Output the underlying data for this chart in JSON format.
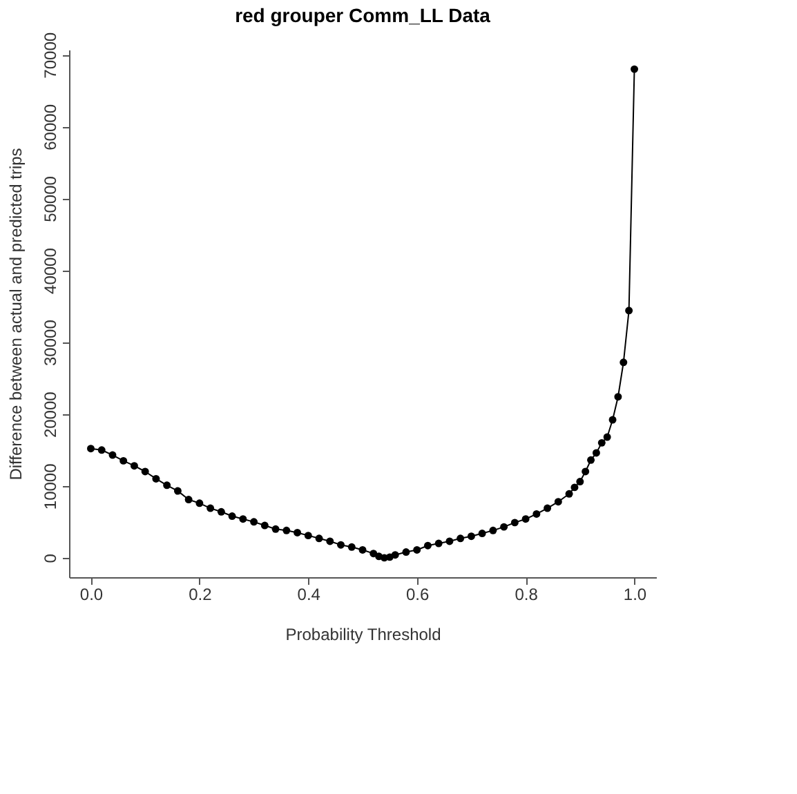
{
  "chart_data": {
    "type": "line",
    "title": "red grouper Comm_LL Data",
    "xlabel": "Probability Threshold",
    "ylabel": "Difference between actual and predicted trips",
    "x": [
      0,
      0.02,
      0.04,
      0.06,
      0.08,
      0.1,
      0.12,
      0.14,
      0.16,
      0.18,
      0.2,
      0.22,
      0.24,
      0.26,
      0.28,
      0.3,
      0.32,
      0.34,
      0.36,
      0.38,
      0.4,
      0.42,
      0.44,
      0.46,
      0.48,
      0.5,
      0.52,
      0.53,
      0.54,
      0.55,
      0.56,
      0.58,
      0.6,
      0.62,
      0.64,
      0.66,
      0.68,
      0.7,
      0.72,
      0.74,
      0.76,
      0.78,
      0.8,
      0.82,
      0.84,
      0.86,
      0.88,
      0.89,
      0.9,
      0.91,
      0.92,
      0.93,
      0.94,
      0.95,
      0.96,
      0.97,
      0.98,
      0.99,
      1.0
    ],
    "series": [
      {
        "color": "#000000",
        "values": [
          15200,
          15000,
          14300,
          13500,
          12800,
          12000,
          11000,
          10100,
          9300,
          8100,
          7600,
          6900,
          6400,
          5800,
          5400,
          5000,
          4500,
          4000,
          3800,
          3500,
          3100,
          2700,
          2300,
          1800,
          1500,
          1100,
          600,
          200,
          0,
          100,
          400,
          800,
          1100,
          1700,
          2000,
          2300,
          2700,
          3000,
          3400,
          3800,
          4300,
          4900,
          5400,
          6100,
          6900,
          7800,
          8900,
          9800,
          10600,
          12000,
          13600,
          14600,
          16000,
          16800,
          19200,
          22400,
          27200,
          34400,
          68000
        ]
      }
    ],
    "xlim": [
      -0.04,
      1.04
    ],
    "ylim": [
      -2700,
      70700
    ],
    "xticks": [
      {
        "value": 0,
        "label": "0.0"
      },
      0.2,
      0.4,
      0.6,
      0.8,
      {
        "value": 1,
        "label": "1.0"
      }
    ],
    "yticks": [
      0,
      10000,
      20000,
      30000,
      40000,
      50000,
      60000,
      70000
    ],
    "marker": "circle",
    "line_style": "solid",
    "grid": false
  }
}
